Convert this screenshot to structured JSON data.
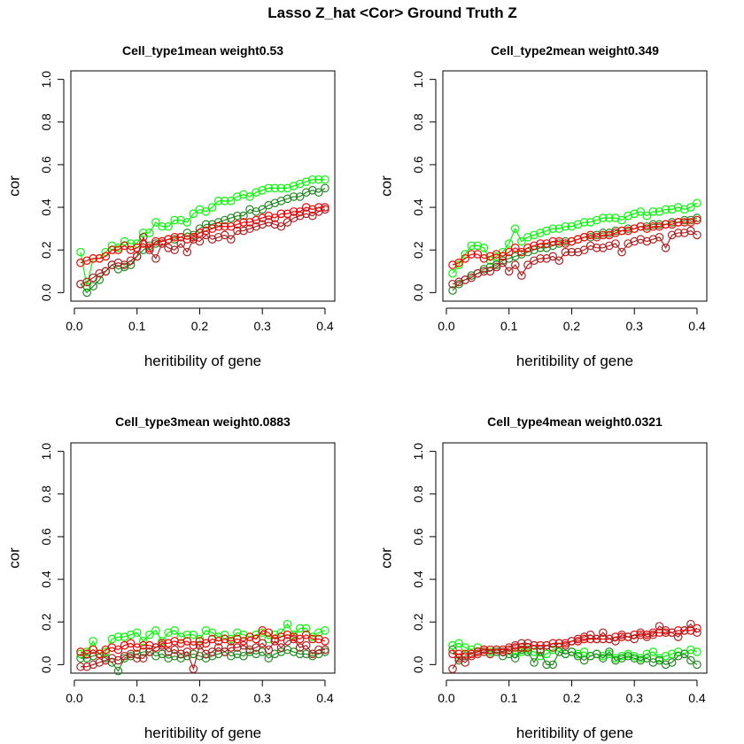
{
  "figure": {
    "title": "Lasso Z_hat <Cor> Ground Truth Z"
  },
  "colors": {
    "bright_green": "#00ff00",
    "dark_green": "#228b22",
    "red": "#ff0000",
    "dark_red": "#b22222"
  },
  "chart_data": [
    {
      "type": "line",
      "title": "Cell_type1mean weight0.53",
      "xlabel": "heritibility of gene",
      "ylabel": "cor",
      "xlim": [
        0,
        0.4
      ],
      "ylim": [
        0,
        1
      ],
      "xticks": [
        "0.0",
        "0.1",
        "0.2",
        "0.3",
        "0.4"
      ],
      "yticks": [
        "0.0",
        "0.2",
        "0.4",
        "0.6",
        "0.8",
        "1.0"
      ],
      "grid": false,
      "markers": "open-circle",
      "x": [
        0.01,
        0.02,
        0.03,
        0.04,
        0.05,
        0.06,
        0.07,
        0.08,
        0.09,
        0.1,
        0.11,
        0.12,
        0.13,
        0.14,
        0.15,
        0.16,
        0.17,
        0.18,
        0.19,
        0.2,
        0.21,
        0.22,
        0.23,
        0.24,
        0.25,
        0.26,
        0.27,
        0.28,
        0.29,
        0.3,
        0.31,
        0.32,
        0.33,
        0.34,
        0.35,
        0.36,
        0.37,
        0.38,
        0.39,
        0.4
      ],
      "series": [
        {
          "color": "#00ff00",
          "values": [
            0.19,
            0.03,
            0.16,
            0.16,
            0.19,
            0.22,
            0.21,
            0.24,
            0.23,
            0.23,
            0.28,
            0.28,
            0.33,
            0.31,
            0.31,
            0.34,
            0.34,
            0.33,
            0.37,
            0.39,
            0.38,
            0.4,
            0.43,
            0.43,
            0.43,
            0.45,
            0.46,
            0.45,
            0.47,
            0.48,
            0.49,
            0.49,
            0.49,
            0.49,
            0.5,
            0.51,
            0.52,
            0.53,
            0.53,
            0.53
          ]
        },
        {
          "color": "#228b22",
          "values": [
            0.04,
            0.0,
            0.03,
            0.06,
            0.1,
            0.13,
            0.11,
            0.12,
            0.13,
            0.17,
            0.2,
            0.22,
            0.23,
            0.24,
            0.25,
            0.25,
            0.26,
            0.28,
            0.27,
            0.3,
            0.32,
            0.32,
            0.33,
            0.34,
            0.35,
            0.36,
            0.36,
            0.39,
            0.38,
            0.39,
            0.41,
            0.42,
            0.43,
            0.44,
            0.45,
            0.45,
            0.47,
            0.48,
            0.47,
            0.49
          ]
        },
        {
          "color": "#ff0000",
          "values": [
            0.14,
            0.15,
            0.16,
            0.16,
            0.17,
            0.2,
            0.2,
            0.22,
            0.2,
            0.21,
            0.23,
            0.21,
            0.24,
            0.24,
            0.25,
            0.26,
            0.26,
            0.25,
            0.26,
            0.28,
            0.29,
            0.3,
            0.31,
            0.31,
            0.31,
            0.32,
            0.33,
            0.33,
            0.34,
            0.35,
            0.36,
            0.35,
            0.37,
            0.37,
            0.38,
            0.38,
            0.4,
            0.39,
            0.4,
            0.4
          ]
        },
        {
          "color": "#b22222",
          "values": [
            0.04,
            0.05,
            0.07,
            0.09,
            0.1,
            0.13,
            0.14,
            0.13,
            0.15,
            0.17,
            0.26,
            0.2,
            0.16,
            0.23,
            0.21,
            0.2,
            0.23,
            0.19,
            0.25,
            0.24,
            0.27,
            0.25,
            0.26,
            0.27,
            0.25,
            0.29,
            0.29,
            0.3,
            0.31,
            0.32,
            0.33,
            0.32,
            0.31,
            0.33,
            0.35,
            0.36,
            0.37,
            0.36,
            0.38,
            0.39
          ]
        }
      ]
    },
    {
      "type": "line",
      "title": "Cell_type2mean weight0.349",
      "xlabel": "heritibility of gene",
      "ylabel": "cor",
      "xlim": [
        0,
        0.4
      ],
      "ylim": [
        0,
        1
      ],
      "xticks": [
        "0.0",
        "0.1",
        "0.2",
        "0.3",
        "0.4"
      ],
      "yticks": [
        "0.0",
        "0.2",
        "0.4",
        "0.6",
        "0.8",
        "1.0"
      ],
      "grid": false,
      "markers": "open-circle",
      "x": [
        0.01,
        0.02,
        0.03,
        0.04,
        0.05,
        0.06,
        0.07,
        0.08,
        0.09,
        0.1,
        0.11,
        0.12,
        0.13,
        0.14,
        0.15,
        0.16,
        0.17,
        0.18,
        0.19,
        0.2,
        0.21,
        0.22,
        0.23,
        0.24,
        0.25,
        0.26,
        0.27,
        0.28,
        0.29,
        0.3,
        0.31,
        0.32,
        0.33,
        0.34,
        0.35,
        0.36,
        0.37,
        0.38,
        0.39,
        0.4
      ],
      "series": [
        {
          "color": "#00ff00",
          "values": [
            0.09,
            0.13,
            0.18,
            0.22,
            0.22,
            0.21,
            0.15,
            0.17,
            0.19,
            0.23,
            0.3,
            0.24,
            0.26,
            0.27,
            0.28,
            0.29,
            0.3,
            0.3,
            0.31,
            0.31,
            0.32,
            0.33,
            0.33,
            0.34,
            0.35,
            0.35,
            0.35,
            0.34,
            0.36,
            0.37,
            0.38,
            0.36,
            0.38,
            0.38,
            0.39,
            0.39,
            0.4,
            0.39,
            0.4,
            0.42
          ]
        },
        {
          "color": "#228b22",
          "values": [
            0.01,
            0.04,
            0.06,
            0.08,
            0.09,
            0.11,
            0.12,
            0.13,
            0.15,
            0.16,
            0.17,
            0.18,
            0.19,
            0.2,
            0.21,
            0.21,
            0.22,
            0.23,
            0.24,
            0.24,
            0.25,
            0.26,
            0.26,
            0.27,
            0.28,
            0.28,
            0.29,
            0.29,
            0.3,
            0.3,
            0.31,
            0.31,
            0.32,
            0.32,
            0.32,
            0.33,
            0.33,
            0.34,
            0.34,
            0.35
          ]
        },
        {
          "color": "#ff0000",
          "values": [
            0.13,
            0.14,
            0.16,
            0.18,
            0.18,
            0.16,
            0.17,
            0.18,
            0.17,
            0.19,
            0.21,
            0.19,
            0.21,
            0.22,
            0.23,
            0.23,
            0.24,
            0.24,
            0.23,
            0.24,
            0.25,
            0.26,
            0.27,
            0.26,
            0.27,
            0.27,
            0.28,
            0.29,
            0.29,
            0.3,
            0.31,
            0.3,
            0.31,
            0.31,
            0.32,
            0.32,
            0.33,
            0.33,
            0.33,
            0.34
          ]
        },
        {
          "color": "#b22222",
          "values": [
            0.04,
            0.05,
            0.06,
            0.07,
            0.09,
            0.1,
            0.1,
            0.12,
            0.14,
            0.1,
            0.13,
            0.08,
            0.13,
            0.15,
            0.16,
            0.16,
            0.17,
            0.15,
            0.19,
            0.19,
            0.19,
            0.2,
            0.22,
            0.21,
            0.21,
            0.22,
            0.23,
            0.19,
            0.23,
            0.24,
            0.25,
            0.24,
            0.25,
            0.26,
            0.21,
            0.27,
            0.28,
            0.28,
            0.29,
            0.27
          ]
        }
      ]
    },
    {
      "type": "line",
      "title": "Cell_type3mean weight0.0883",
      "xlabel": "heritibility of gene",
      "ylabel": "cor",
      "xlim": [
        0,
        0.4
      ],
      "ylim": [
        0,
        1
      ],
      "xticks": [
        "0.0",
        "0.1",
        "0.2",
        "0.3",
        "0.4"
      ],
      "yticks": [
        "0.0",
        "0.2",
        "0.4",
        "0.6",
        "0.8",
        "1.0"
      ],
      "grid": false,
      "markers": "open-circle",
      "x": [
        0.01,
        0.02,
        0.03,
        0.04,
        0.05,
        0.06,
        0.07,
        0.08,
        0.09,
        0.1,
        0.11,
        0.12,
        0.13,
        0.14,
        0.15,
        0.16,
        0.17,
        0.18,
        0.19,
        0.2,
        0.21,
        0.22,
        0.23,
        0.24,
        0.25,
        0.26,
        0.27,
        0.28,
        0.29,
        0.3,
        0.31,
        0.32,
        0.33,
        0.34,
        0.35,
        0.36,
        0.37,
        0.38,
        0.39,
        0.4
      ],
      "series": [
        {
          "color": "#00ff00",
          "values": [
            0.05,
            0.06,
            0.11,
            0.05,
            0.06,
            0.12,
            0.13,
            0.13,
            0.14,
            0.15,
            0.11,
            0.14,
            0.16,
            0.11,
            0.15,
            0.16,
            0.13,
            0.14,
            0.14,
            0.12,
            0.16,
            0.15,
            0.13,
            0.14,
            0.12,
            0.15,
            0.14,
            0.13,
            0.14,
            0.15,
            0.12,
            0.14,
            0.15,
            0.19,
            0.14,
            0.17,
            0.17,
            0.13,
            0.15,
            0.16
          ]
        },
        {
          "color": "#228b22",
          "values": [
            0.03,
            0.03,
            0.04,
            0.05,
            0.03,
            0.01,
            -0.03,
            0.03,
            0.04,
            0.05,
            0.06,
            0.06,
            0.04,
            0.05,
            0.03,
            0.04,
            0.03,
            0.04,
            0.05,
            0.04,
            0.03,
            0.04,
            0.05,
            0.06,
            0.04,
            0.05,
            0.04,
            0.06,
            0.05,
            0.06,
            0.03,
            0.05,
            0.06,
            0.07,
            0.06,
            0.05,
            0.05,
            0.04,
            0.05,
            0.06
          ]
        },
        {
          "color": "#ff0000",
          "values": [
            0.06,
            0.05,
            0.07,
            0.05,
            0.07,
            0.08,
            0.07,
            0.09,
            0.1,
            0.08,
            0.09,
            0.09,
            0.08,
            0.1,
            0.1,
            0.11,
            0.1,
            0.11,
            0.09,
            0.11,
            0.1,
            0.12,
            0.11,
            0.12,
            0.11,
            0.12,
            0.11,
            0.13,
            0.12,
            0.16,
            0.15,
            0.12,
            0.13,
            0.14,
            0.13,
            0.12,
            0.14,
            0.12,
            0.12,
            0.11
          ]
        },
        {
          "color": "#b22222",
          "values": [
            -0.01,
            -0.01,
            0.0,
            0.01,
            0.02,
            0.03,
            0.02,
            0.04,
            0.05,
            0.03,
            0.03,
            0.06,
            0.08,
            0.09,
            0.06,
            0.07,
            0.05,
            0.06,
            -0.02,
            0.09,
            0.05,
            0.06,
            0.08,
            0.06,
            0.08,
            0.08,
            0.09,
            0.07,
            0.08,
            0.1,
            0.07,
            0.11,
            0.08,
            0.11,
            0.12,
            0.08,
            0.09,
            0.05,
            0.07,
            0.07
          ]
        }
      ]
    },
    {
      "type": "line",
      "title": "Cell_type4mean weight0.0321",
      "xlabel": "heritibility of gene",
      "ylabel": "cor",
      "xlim": [
        0,
        0.4
      ],
      "ylim": [
        0,
        1
      ],
      "xticks": [
        "0.0",
        "0.1",
        "0.2",
        "0.3",
        "0.4"
      ],
      "yticks": [
        "0.0",
        "0.2",
        "0.4",
        "0.6",
        "0.8",
        "1.0"
      ],
      "grid": false,
      "markers": "open-circle",
      "x": [
        0.01,
        0.02,
        0.03,
        0.04,
        0.05,
        0.06,
        0.07,
        0.08,
        0.09,
        0.1,
        0.11,
        0.12,
        0.13,
        0.14,
        0.15,
        0.16,
        0.17,
        0.18,
        0.19,
        0.2,
        0.21,
        0.22,
        0.23,
        0.24,
        0.25,
        0.26,
        0.27,
        0.28,
        0.29,
        0.3,
        0.31,
        0.32,
        0.33,
        0.34,
        0.35,
        0.36,
        0.37,
        0.38,
        0.39,
        0.4
      ],
      "series": [
        {
          "color": "#00ff00",
          "values": [
            0.09,
            0.1,
            0.08,
            0.07,
            0.08,
            0.07,
            0.06,
            0.07,
            0.06,
            0.07,
            0.05,
            0.06,
            0.07,
            0.06,
            0.04,
            0.05,
            0.07,
            0.08,
            0.05,
            0.06,
            0.05,
            0.06,
            0.04,
            0.05,
            0.04,
            0.05,
            0.03,
            0.04,
            0.05,
            0.04,
            0.03,
            0.05,
            0.06,
            0.03,
            0.04,
            0.05,
            0.06,
            0.05,
            0.07,
            0.06
          ]
        },
        {
          "color": "#228b22",
          "values": [
            0.07,
            0.02,
            0.04,
            0.05,
            0.06,
            0.07,
            0.05,
            0.06,
            0.04,
            0.05,
            0.03,
            0.07,
            0.06,
            0.01,
            0.06,
            0.0,
            0.0,
            0.06,
            0.05,
            0.06,
            0.04,
            0.02,
            0.04,
            0.05,
            0.03,
            0.06,
            0.02,
            0.03,
            0.04,
            0.03,
            0.02,
            0.03,
            0.01,
            0.02,
            0.0,
            0.01,
            0.04,
            0.05,
            0.02,
            0.0
          ]
        },
        {
          "color": "#ff0000",
          "values": [
            0.05,
            0.05,
            0.05,
            0.05,
            0.06,
            0.07,
            0.07,
            0.07,
            0.07,
            0.07,
            0.08,
            0.08,
            0.08,
            0.09,
            0.09,
            0.09,
            0.1,
            0.1,
            0.1,
            0.11,
            0.11,
            0.12,
            0.12,
            0.12,
            0.12,
            0.12,
            0.13,
            0.13,
            0.13,
            0.14,
            0.14,
            0.14,
            0.15,
            0.15,
            0.15,
            0.15,
            0.16,
            0.16,
            0.16,
            0.17
          ]
        },
        {
          "color": "#b22222",
          "values": [
            -0.02,
            0.03,
            0.01,
            0.04,
            0.05,
            0.06,
            0.05,
            0.07,
            0.06,
            0.08,
            0.09,
            0.1,
            0.1,
            0.09,
            0.07,
            0.09,
            0.08,
            0.1,
            0.09,
            0.11,
            0.12,
            0.13,
            0.14,
            0.12,
            0.15,
            0.12,
            0.11,
            0.14,
            0.13,
            0.12,
            0.15,
            0.13,
            0.14,
            0.18,
            0.16,
            0.15,
            0.13,
            0.16,
            0.19,
            0.15
          ]
        }
      ]
    }
  ]
}
